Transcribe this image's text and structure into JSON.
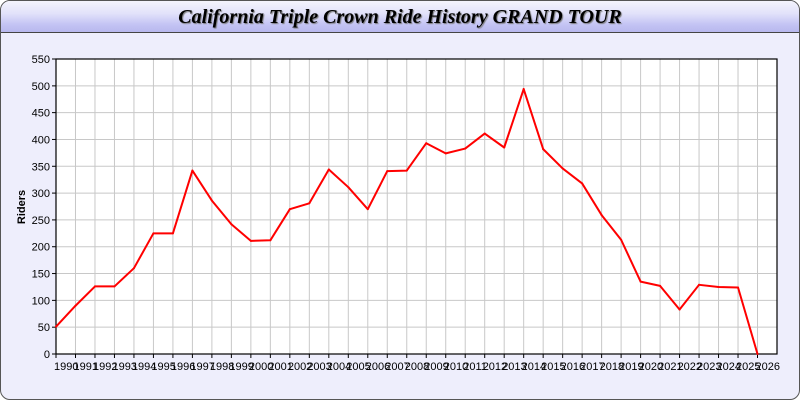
{
  "chart_data": {
    "type": "line",
    "title": "California Triple Crown Ride History GRAND TOUR",
    "xlabel": "",
    "ylabel": "Riders",
    "xlim": [
      1990,
      2027
    ],
    "ylim": [
      0,
      550
    ],
    "yticks": [
      0,
      50,
      100,
      150,
      200,
      250,
      300,
      350,
      400,
      450,
      500,
      550
    ],
    "grid": true,
    "line_color": "#ff0000",
    "x": [
      1990,
      1991,
      1992,
      1993,
      1994,
      1995,
      1996,
      1997,
      1998,
      1999,
      2000,
      2001,
      2002,
      2003,
      2004,
      2005,
      2006,
      2007,
      2008,
      2009,
      2010,
      2011,
      2012,
      2013,
      2014,
      2015,
      2016,
      2017,
      2018,
      2019,
      2020,
      2021,
      2022,
      2023,
      2024,
      2025,
      2026
    ],
    "series": [
      {
        "values": [
          51,
          90,
          126,
          126,
          160,
          225,
          225,
          342,
          286,
          242,
          211,
          212,
          270,
          281,
          344,
          311,
          270,
          341,
          342,
          393,
          374,
          383,
          411,
          385,
          494,
          382,
          346,
          318,
          259,
          213,
          135,
          127,
          83,
          129,
          125,
          124,
          0
        ]
      }
    ]
  }
}
